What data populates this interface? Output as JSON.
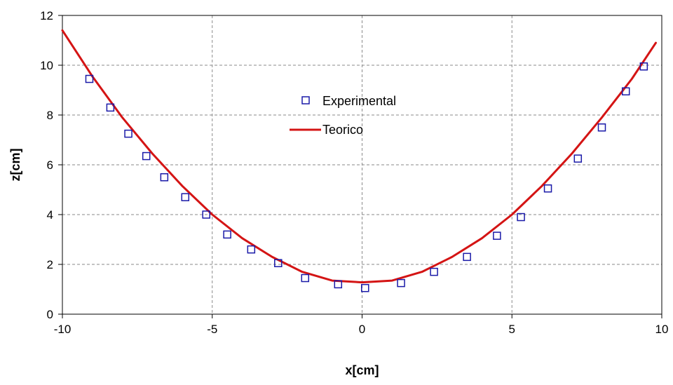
{
  "chart_data": {
    "type": "scatter",
    "title": "",
    "xlabel": "x[cm]",
    "ylabel": "z[cm]",
    "xlim": [
      -10,
      10
    ],
    "ylim": [
      0,
      12
    ],
    "xticks": [
      -10,
      -5,
      0,
      5,
      10
    ],
    "yticks": [
      0,
      2,
      4,
      6,
      8,
      10,
      12
    ],
    "xtick_labels": [
      "-10",
      "-5",
      "0",
      "5",
      "10"
    ],
    "ytick_labels": [
      "0",
      "2",
      "4",
      "6",
      "8",
      "10",
      "12"
    ],
    "grid": true,
    "legend_position": "top-center",
    "series": [
      {
        "name": "Experimental",
        "kind": "markers",
        "marker": "square",
        "color": "#1a1aa8",
        "x": [
          -9.1,
          -8.4,
          -7.8,
          -7.2,
          -6.6,
          -5.9,
          -5.2,
          -4.5,
          -3.7,
          -2.8,
          -1.9,
          -0.8,
          0.1,
          1.3,
          2.4,
          3.5,
          4.5,
          5.3,
          6.2,
          7.2,
          8.0,
          8.8,
          9.4
        ],
        "y": [
          9.45,
          8.3,
          7.25,
          6.35,
          5.5,
          4.7,
          4.0,
          3.2,
          2.6,
          2.05,
          1.45,
          1.2,
          1.05,
          1.25,
          1.7,
          2.3,
          3.15,
          3.9,
          5.05,
          6.25,
          7.5,
          8.95,
          9.95
        ]
      },
      {
        "name": "Teorico",
        "kind": "line",
        "color": "#d41414",
        "x": [
          -10,
          -9,
          -8,
          -7,
          -6,
          -5,
          -4,
          -3,
          -2,
          -1,
          0,
          1,
          2,
          3,
          4,
          5,
          6,
          7,
          8,
          9,
          9.8
        ],
        "y": [
          11.4,
          9.55,
          7.9,
          6.45,
          5.15,
          4.0,
          3.05,
          2.3,
          1.7,
          1.35,
          1.28,
          1.35,
          1.7,
          2.3,
          3.05,
          4.0,
          5.15,
          6.45,
          7.9,
          9.45,
          10.9
        ]
      }
    ]
  }
}
